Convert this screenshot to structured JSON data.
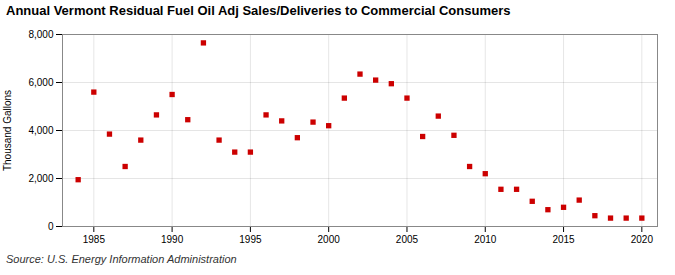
{
  "chart_data": {
    "type": "scatter",
    "title": "Annual Vermont Residual Fuel Oil Adj Sales/Deliveries to Commercial Consumers",
    "ylabel": "Thousand Gallons",
    "caption": "Source: U.S. Energy Information Administration",
    "x": [
      1984,
      1985,
      1986,
      1987,
      1988,
      1989,
      1990,
      1991,
      1992,
      1993,
      1994,
      1995,
      1996,
      1997,
      1998,
      1999,
      2000,
      2001,
      2002,
      2003,
      2004,
      2005,
      2006,
      2007,
      2008,
      2009,
      2010,
      2011,
      2012,
      2013,
      2014,
      2015,
      2016,
      2017,
      2018,
      2019,
      2020
    ],
    "values": [
      1950,
      5600,
      3850,
      2500,
      3600,
      4650,
      5500,
      4450,
      7650,
      3600,
      3100,
      3100,
      4650,
      4400,
      3700,
      4350,
      4200,
      5350,
      6350,
      6100,
      5950,
      5350,
      3750,
      4600,
      3800,
      2500,
      2200,
      1550,
      1550,
      1050,
      700,
      800,
      1100,
      450,
      350,
      350,
      350
    ],
    "color": "#cc0000",
    "marker": "square",
    "xlim": [
      1983,
      2021
    ],
    "xticks": [
      1985,
      1990,
      1995,
      2000,
      2005,
      2010,
      2015,
      2020
    ],
    "ylim": [
      0,
      8000
    ],
    "yticks": [
      {
        "value": 0,
        "label": "0"
      },
      {
        "value": 2000,
        "label": "2,000"
      },
      {
        "value": 4000,
        "label": "4,000"
      },
      {
        "value": 6000,
        "label": "6,000"
      },
      {
        "value": 8000,
        "label": "8,000"
      }
    ],
    "grid": true
  }
}
